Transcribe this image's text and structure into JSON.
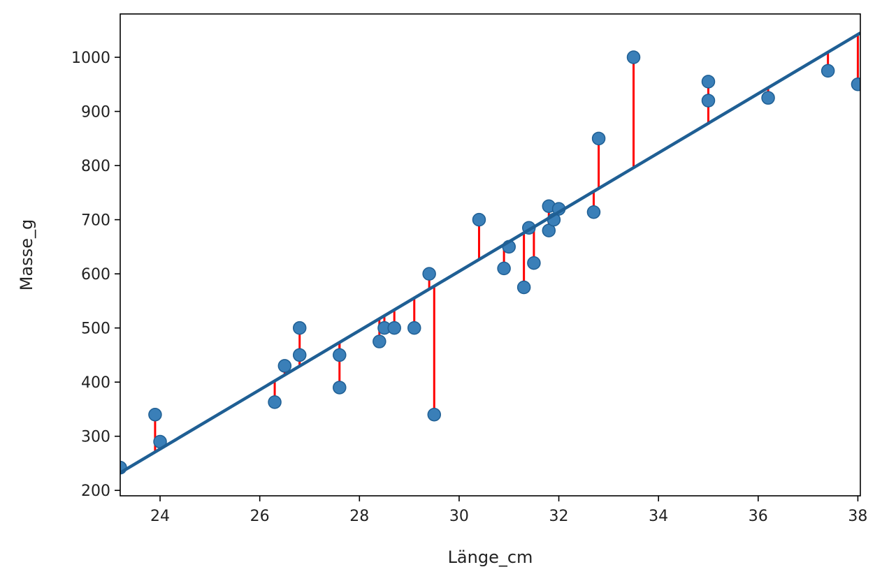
{
  "chart_data": {
    "type": "scatter",
    "title": "",
    "xlabel": "Länge_cm",
    "ylabel": "Masse_g",
    "xlim": [
      23.2,
      38.05
    ],
    "ylim": [
      190,
      1080
    ],
    "xticks": [
      24,
      26,
      28,
      30,
      32,
      34,
      36,
      38
    ],
    "yticks": [
      200,
      300,
      400,
      500,
      600,
      700,
      800,
      900,
      1000
    ],
    "grid": false,
    "legend": "none",
    "colors": {
      "point": "#3a7fb8",
      "point_edge": "#1f5f94",
      "fit_line": "#1f5f94",
      "residual": "#ff0000"
    },
    "fit_line": {
      "slope": 54.7,
      "intercept": -1036.4
    },
    "points": [
      {
        "x": 23.2,
        "y": 242
      },
      {
        "x": 23.9,
        "y": 340
      },
      {
        "x": 24.0,
        "y": 290
      },
      {
        "x": 26.3,
        "y": 363
      },
      {
        "x": 26.5,
        "y": 430
      },
      {
        "x": 26.8,
        "y": 450
      },
      {
        "x": 26.8,
        "y": 500
      },
      {
        "x": 27.6,
        "y": 390
      },
      {
        "x": 27.6,
        "y": 450
      },
      {
        "x": 28.4,
        "y": 475
      },
      {
        "x": 28.5,
        "y": 500
      },
      {
        "x": 28.7,
        "y": 500
      },
      {
        "x": 29.1,
        "y": 500
      },
      {
        "x": 29.4,
        "y": 600
      },
      {
        "x": 29.5,
        "y": 340
      },
      {
        "x": 30.4,
        "y": 700
      },
      {
        "x": 30.9,
        "y": 610
      },
      {
        "x": 31.0,
        "y": 650
      },
      {
        "x": 31.3,
        "y": 575
      },
      {
        "x": 31.4,
        "y": 685
      },
      {
        "x": 31.5,
        "y": 620
      },
      {
        "x": 31.8,
        "y": 680
      },
      {
        "x": 31.8,
        "y": 725
      },
      {
        "x": 31.9,
        "y": 700
      },
      {
        "x": 32.0,
        "y": 720
      },
      {
        "x": 32.7,
        "y": 714
      },
      {
        "x": 32.8,
        "y": 850
      },
      {
        "x": 33.5,
        "y": 1000
      },
      {
        "x": 35.0,
        "y": 920
      },
      {
        "x": 35.0,
        "y": 955
      },
      {
        "x": 36.2,
        "y": 925
      },
      {
        "x": 37.4,
        "y": 975
      },
      {
        "x": 38.0,
        "y": 950
      }
    ]
  }
}
